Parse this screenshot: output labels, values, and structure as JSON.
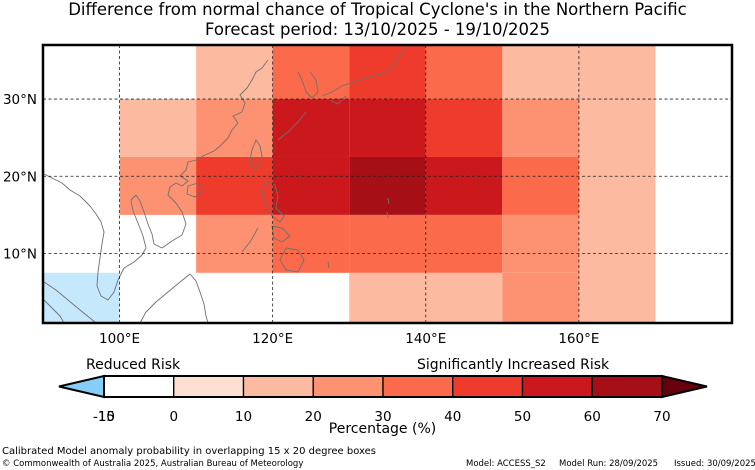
{
  "title": {
    "line1": "Difference from normal chance of Tropical Cyclone's in the Northern Pacific",
    "line2": "Forecast period: 13/10/2025 - 19/10/2025"
  },
  "map": {
    "lon_range": [
      90,
      180
    ],
    "lat_range": [
      1,
      37
    ],
    "lon_ticks": [
      100,
      120,
      140,
      160
    ],
    "lon_tick_labels": [
      "100°E",
      "120°E",
      "140°E",
      "160°E"
    ],
    "lat_ticks": [
      10,
      20,
      30
    ],
    "lat_tick_labels": [
      "10°N",
      "20°N",
      "30°N"
    ],
    "cells": [
      {
        "lon": [
          90,
          100
        ],
        "lat": [
          1,
          7.5
        ],
        "value": -12
      },
      {
        "lon": [
          100,
          110
        ],
        "lat": [
          15,
          22.5
        ],
        "value": 25
      },
      {
        "lon": [
          100,
          110
        ],
        "lat": [
          22.5,
          30
        ],
        "value": 13
      },
      {
        "lon": [
          110,
          120
        ],
        "lat": [
          7.5,
          15
        ],
        "value": 25
      },
      {
        "lon": [
          110,
          120
        ],
        "lat": [
          15,
          22.5
        ],
        "value": 45
      },
      {
        "lon": [
          110,
          120
        ],
        "lat": [
          22.5,
          30
        ],
        "value": 25
      },
      {
        "lon": [
          110,
          120
        ],
        "lat": [
          30,
          37
        ],
        "value": 13
      },
      {
        "lon": [
          120,
          130
        ],
        "lat": [
          7.5,
          15
        ],
        "value": 35
      },
      {
        "lon": [
          120,
          130
        ],
        "lat": [
          15,
          22.5
        ],
        "value": 58
      },
      {
        "lon": [
          120,
          130
        ],
        "lat": [
          22.5,
          30
        ],
        "value": 52
      },
      {
        "lon": [
          120,
          130
        ],
        "lat": [
          30,
          37
        ],
        "value": 35
      },
      {
        "lon": [
          130,
          140
        ],
        "lat": [
          1,
          7.5
        ],
        "value": 13
      },
      {
        "lon": [
          130,
          140
        ],
        "lat": [
          7.5,
          15
        ],
        "value": 35
      },
      {
        "lon": [
          130,
          140
        ],
        "lat": [
          15,
          22.5
        ],
        "value": 65
      },
      {
        "lon": [
          130,
          140
        ],
        "lat": [
          22.5,
          30
        ],
        "value": 52
      },
      {
        "lon": [
          130,
          140
        ],
        "lat": [
          30,
          37
        ],
        "value": 45
      },
      {
        "lon": [
          140,
          150
        ],
        "lat": [
          1,
          7.5
        ],
        "value": 18
      },
      {
        "lon": [
          140,
          150
        ],
        "lat": [
          7.5,
          15
        ],
        "value": 35
      },
      {
        "lon": [
          140,
          150
        ],
        "lat": [
          15,
          22.5
        ],
        "value": 52
      },
      {
        "lon": [
          140,
          150
        ],
        "lat": [
          22.5,
          30
        ],
        "value": 45
      },
      {
        "lon": [
          140,
          150
        ],
        "lat": [
          30,
          37
        ],
        "value": 35
      },
      {
        "lon": [
          150,
          160
        ],
        "lat": [
          1,
          7.5
        ],
        "value": 25
      },
      {
        "lon": [
          150,
          160
        ],
        "lat": [
          7.5,
          15
        ],
        "value": 25
      },
      {
        "lon": [
          150,
          160
        ],
        "lat": [
          15,
          22.5
        ],
        "value": 35
      },
      {
        "lon": [
          150,
          160
        ],
        "lat": [
          22.5,
          30
        ],
        "value": 25
      },
      {
        "lon": [
          150,
          160
        ],
        "lat": [
          30,
          37
        ],
        "value": 18
      },
      {
        "lon": [
          160,
          170
        ],
        "lat": [
          1,
          37
        ],
        "value": 13
      }
    ]
  },
  "colorbar": {
    "ticks": [
      -15,
      -10,
      0,
      10,
      20,
      30,
      40,
      50,
      60,
      70
    ],
    "tick_labels": [
      "-15",
      "-10",
      "0",
      "10",
      "20",
      "30",
      "40",
      "50",
      "60",
      "70"
    ],
    "colors": [
      "#86cefa",
      "#c6e8fc",
      "#ffffff",
      "#fee0d2",
      "#fcbba1",
      "#fc9272",
      "#fb6a4a",
      "#ef3b2c",
      "#cb181d",
      "#a50f15",
      "#67000d"
    ],
    "title": "Percentage (%)",
    "left_label": "Reduced Risk",
    "right_label": "Significantly Increased Risk"
  },
  "footer": {
    "description": "Calibrated Model anomaly probability in overlapping 15 x 20 degree boxes",
    "copyright": "© Commonwealth of Australia 2025, Australian Bureau of Meteorology",
    "model": "Model: ACCESS_S2",
    "model_run": "Model Run: 28/09/2025",
    "issued": "Issued: 30/09/2025"
  }
}
